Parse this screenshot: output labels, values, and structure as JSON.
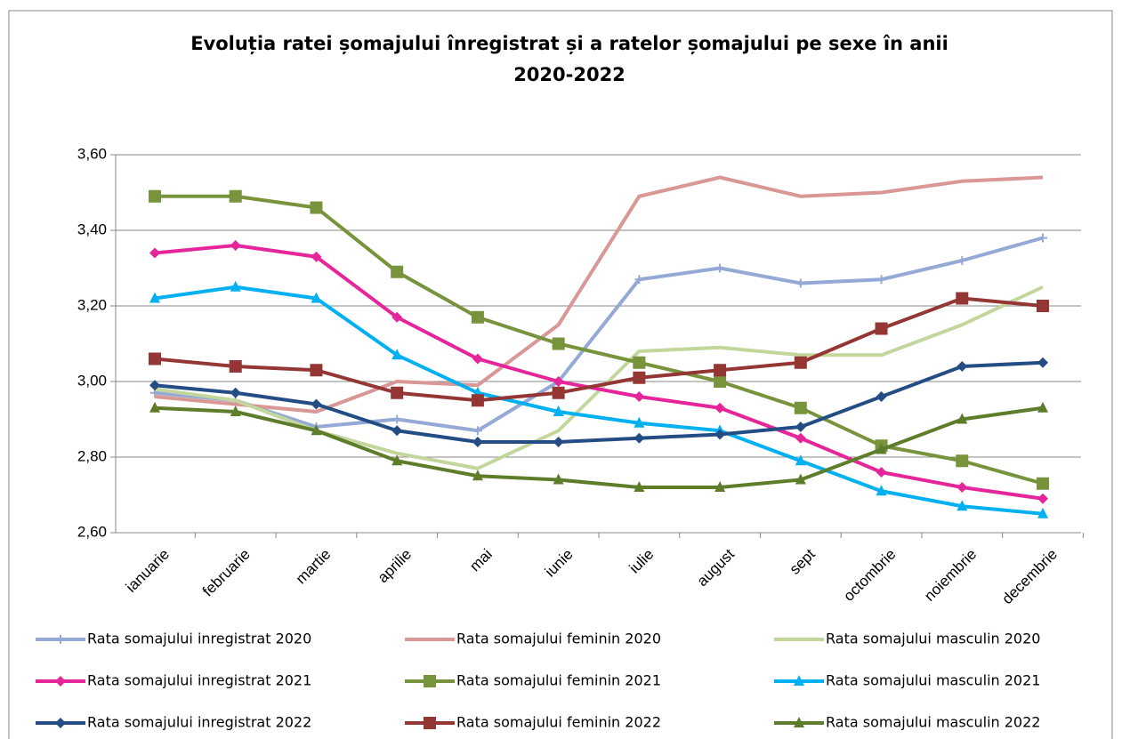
{
  "chart_data": {
    "type": "line",
    "title": "Evoluția ratei șomajului înregistrat și a ratelor șomajului pe sexe în anii 2020-2022",
    "categories": [
      "ianuarie",
      "februarie",
      "martie",
      "aprilie",
      "mai",
      "iunie",
      "iulie",
      "august",
      "sept",
      "octombrie",
      "noiembrie",
      "decembrie"
    ],
    "ylim": [
      2.6,
      3.6
    ],
    "yticks": [
      {
        "value": 2.6,
        "label": "2,60"
      },
      {
        "value": 2.8,
        "label": "2,80"
      },
      {
        "value": 3.0,
        "label": "3,00"
      },
      {
        "value": 3.2,
        "label": "3,20"
      },
      {
        "value": 3.4,
        "label": "3,40"
      },
      {
        "value": 3.6,
        "label": "3,60"
      }
    ],
    "grid": true,
    "legend": "bottom",
    "series": [
      {
        "name": "Rata somajului inregistrat 2020",
        "color": "#95a9d6",
        "marker": "plus",
        "values": [
          2.97,
          2.95,
          2.88,
          2.9,
          2.87,
          3.0,
          3.27,
          3.3,
          3.26,
          3.27,
          3.32,
          3.38
        ]
      },
      {
        "name": "Rata somajului feminin 2020",
        "color": "#d99795",
        "marker": "none",
        "values": [
          2.96,
          2.94,
          2.92,
          3.0,
          2.99,
          3.15,
          3.49,
          3.54,
          3.49,
          3.5,
          3.53,
          3.54
        ]
      },
      {
        "name": "Rata somajului masculin 2020",
        "color": "#c3d69b",
        "marker": "none",
        "values": [
          2.98,
          2.95,
          2.87,
          2.81,
          2.77,
          2.87,
          3.08,
          3.09,
          3.07,
          3.07,
          3.15,
          3.25
        ]
      },
      {
        "name": "Rata somajului inregistrat 2021",
        "color": "#e6259b",
        "marker": "diamond",
        "values": [
          3.34,
          3.36,
          3.33,
          3.17,
          3.06,
          3.0,
          2.96,
          2.93,
          2.85,
          2.76,
          2.72,
          2.69
        ]
      },
      {
        "name": "Rata somajului feminin 2021",
        "color": "#77933c",
        "marker": "square",
        "values": [
          3.49,
          3.49,
          3.46,
          3.29,
          3.17,
          3.1,
          3.05,
          3.0,
          2.93,
          2.83,
          2.79,
          2.73
        ]
      },
      {
        "name": "Rata somajului masculin 2021",
        "color": "#00b0f0",
        "marker": "triangle",
        "values": [
          3.22,
          3.25,
          3.22,
          3.07,
          2.97,
          2.92,
          2.89,
          2.87,
          2.79,
          2.71,
          2.67,
          2.65
        ]
      },
      {
        "name": "Rata somajului inregistrat 2022",
        "color": "#254d85",
        "marker": "diamond",
        "values": [
          2.99,
          2.97,
          2.94,
          2.87,
          2.84,
          2.84,
          2.85,
          2.86,
          2.88,
          2.96,
          3.04,
          3.05
        ]
      },
      {
        "name": "Rata somajului feminin 2022",
        "color": "#943634",
        "marker": "square",
        "values": [
          3.06,
          3.04,
          3.03,
          2.97,
          2.95,
          2.97,
          3.01,
          3.03,
          3.05,
          3.14,
          3.22,
          3.2
        ]
      },
      {
        "name": "Rata somajului masculin 2022",
        "color": "#5e7d2a",
        "marker": "triangle",
        "values": [
          2.93,
          2.92,
          2.87,
          2.79,
          2.75,
          2.74,
          2.72,
          2.72,
          2.74,
          2.82,
          2.9,
          2.93
        ]
      }
    ]
  }
}
